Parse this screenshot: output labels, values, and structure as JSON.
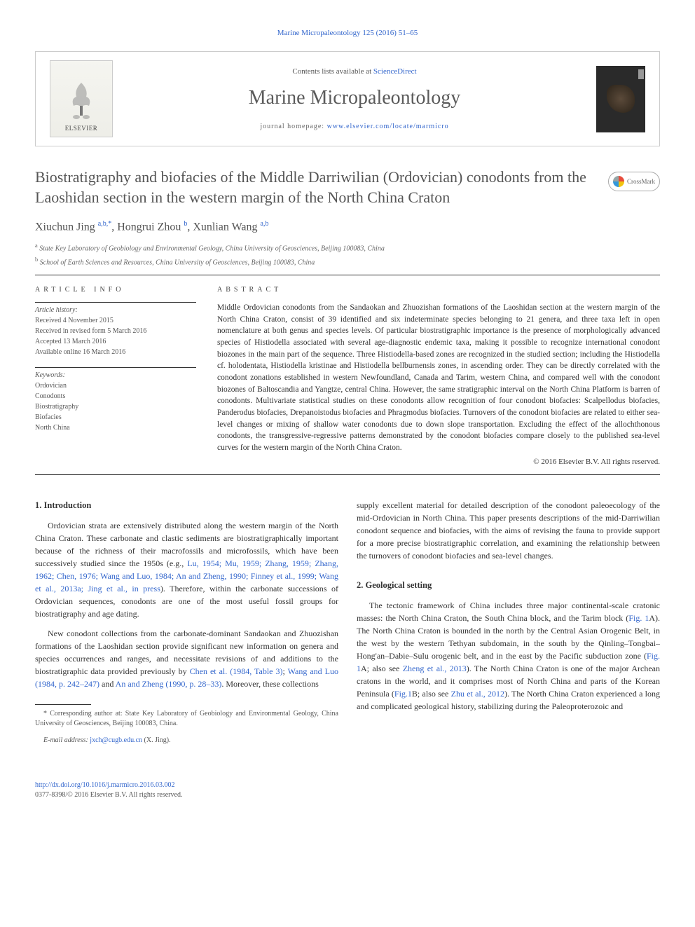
{
  "journal_ref": "Marine Micropaleontology 125 (2016) 51–65",
  "header": {
    "contents_prefix": "Contents lists available at ",
    "contents_link": "ScienceDirect",
    "journal_title": "Marine Micropaleontology",
    "homepage_prefix": "journal homepage: ",
    "homepage_url": "www.elsevier.com/locate/marmicro",
    "elsevier_label": "ELSEVIER"
  },
  "crossmark_label": "CrossMark",
  "article": {
    "title": "Biostratigraphy and biofacies of the Middle Darriwilian (Ordovician) conodonts from the Laoshidan section in the western margin of the North China Craton",
    "authors_html": "Xiuchun Jing <sup>a,b,*</sup>, Hongrui Zhou <sup>b</sup>, Xunlian Wang <sup>a,b</sup>",
    "affiliations": [
      {
        "sup": "a",
        "text": "State Key Laboratory of Geobiology and Environmental Geology, China University of Geosciences, Beijing 100083, China"
      },
      {
        "sup": "b",
        "text": "School of Earth Sciences and Resources, China University of Geosciences, Beijing 100083, China"
      }
    ]
  },
  "article_info": {
    "label": "article info",
    "history_label": "Article history:",
    "history": [
      "Received 4 November 2015",
      "Received in revised form 5 March 2016",
      "Accepted 13 March 2016",
      "Available online 16 March 2016"
    ],
    "keywords_label": "Keywords:",
    "keywords": [
      "Ordovician",
      "Conodonts",
      "Biostratigraphy",
      "Biofacies",
      "North China"
    ]
  },
  "abstract": {
    "label": "abstract",
    "text": "Middle Ordovician conodonts from the Sandaokan and Zhuozishan formations of the Laoshidan section at the western margin of the North China Craton, consist of 39 identified and six indeterminate species belonging to 21 genera, and three taxa left in open nomenclature at both genus and species levels. Of particular biostratigraphic importance is the presence of morphologically advanced species of Histiodella associated with several age-diagnostic endemic taxa, making it possible to recognize international conodont biozones in the main part of the sequence. Three Histiodella-based zones are recognized in the studied section; including the Histiodella cf. holodentata, Histiodella kristinae and Histiodella bellburnensis zones, in ascending order. They can be directly correlated with the conodont zonations established in western Newfoundland, Canada and Tarim, western China, and compared well with the conodont biozones of Baltoscandia and Yangtze, central China. However, the same stratigraphic interval on the North China Platform is barren of conodonts. Multivariate statistical studies on these conodonts allow recognition of four conodont biofacies: Scalpellodus biofacies, Panderodus biofacies, Drepanoistodus biofacies and Phragmodus biofacies. Turnovers of the conodont biofacies are related to either sea-level changes or mixing of shallow water conodonts due to down slope transportation. Excluding the effect of the allochthonous conodonts, the transgressive-regressive patterns demonstrated by the conodont biofacies compare closely to the published sea-level curves for the western margin of the North China Craton.",
    "copyright": "© 2016 Elsevier B.V. All rights reserved."
  },
  "body": {
    "intro_heading": "1. Introduction",
    "intro_p1_before": "Ordovician strata are extensively distributed along the western margin of the North China Craton. These carbonate and clastic sediments are biostratigraphically important because of the richness of their macrofossils and microfossils, which have been successively studied since the 1950s (e.g., ",
    "intro_p1_link": "Lu, 1954; Mu, 1959; Zhang, 1959; Zhang, 1962; Chen, 1976; Wang and Luo, 1984; An and Zheng, 1990; Finney et al., 1999; Wang et al., 2013a; Jing et al., in press",
    "intro_p1_after": "). Therefore, within the carbonate successions of Ordovician sequences, conodonts are one of the most useful fossil groups for biostratigraphy and age dating.",
    "intro_p2_before": "New conodont collections from the carbonate-dominant Sandaokan and Zhuozishan formations of the Laoshidan section provide significant new information on genera and species occurrences and ranges, and necessitate revisions of and additions to the biostratigraphic data provided previously by ",
    "intro_p2_link1": "Chen et al. (1984, Table 3)",
    "intro_p2_mid1": "; ",
    "intro_p2_link2": "Wang and Luo (1984, p. 242–247)",
    "intro_p2_mid2": " and ",
    "intro_p2_link3": "An and Zheng (1990, p. 28–33)",
    "intro_p2_after": ". Moreover, these collections ",
    "intro_p2_cont": "supply excellent material for detailed description of the conodont paleoecology of the mid-Ordovician in North China. This paper presents descriptions of the mid-Darriwilian conodont sequence and biofacies, with the aims of revising the fauna to provide support for a more precise biostratigraphic correlation, and examining the relationship between the turnovers of conodont biofacies and sea-level changes.",
    "geo_heading": "2. Geological setting",
    "geo_p1_before": "The tectonic framework of China includes three major continental-scale cratonic masses: the North China Craton, the South China block, and the Tarim block (",
    "geo_p1_link1": "Fig. 1",
    "geo_p1_mid1": "A). The North China Craton is bounded in the north by the Central Asian Orogenic Belt, in the west by the western Tethyan subdomain, in the south by the Qinling–Tongbai–Hong'an–Dabie–Sulu orogenic belt, and in the east by the Pacific subduction zone (",
    "geo_p1_link2": "Fig. 1",
    "geo_p1_mid2": "A; also see ",
    "geo_p1_link3": "Zheng et al., 2013",
    "geo_p1_mid3": "). The North China Craton is one of the major Archean cratons in the world, and it comprises most of North China and parts of the Korean Peninsula (",
    "geo_p1_link4": "Fig.1",
    "geo_p1_mid4": "B; also see ",
    "geo_p1_link5": "Zhu et al., 2012",
    "geo_p1_after": "). The North China Craton experienced a long and complicated geological history, stabilizing during the Paleoproterozoic and"
  },
  "footnotes": {
    "corr": "* Corresponding author at: State Key Laboratory of Geobiology and Environmental Geology, China University of Geosciences, Beijing 100083, China.",
    "email_label": "E-mail address:",
    "email": "jxch@cugb.edu.cn",
    "email_person": "(X. Jing)."
  },
  "footer": {
    "doi": "http://dx.doi.org/10.1016/j.marmicro.2016.03.002",
    "issn_line": "0377-8398/© 2016 Elsevier B.V. All rights reserved."
  },
  "colors": {
    "link": "#3366cc",
    "text": "#333333",
    "muted": "#555555",
    "border": "#333333"
  }
}
